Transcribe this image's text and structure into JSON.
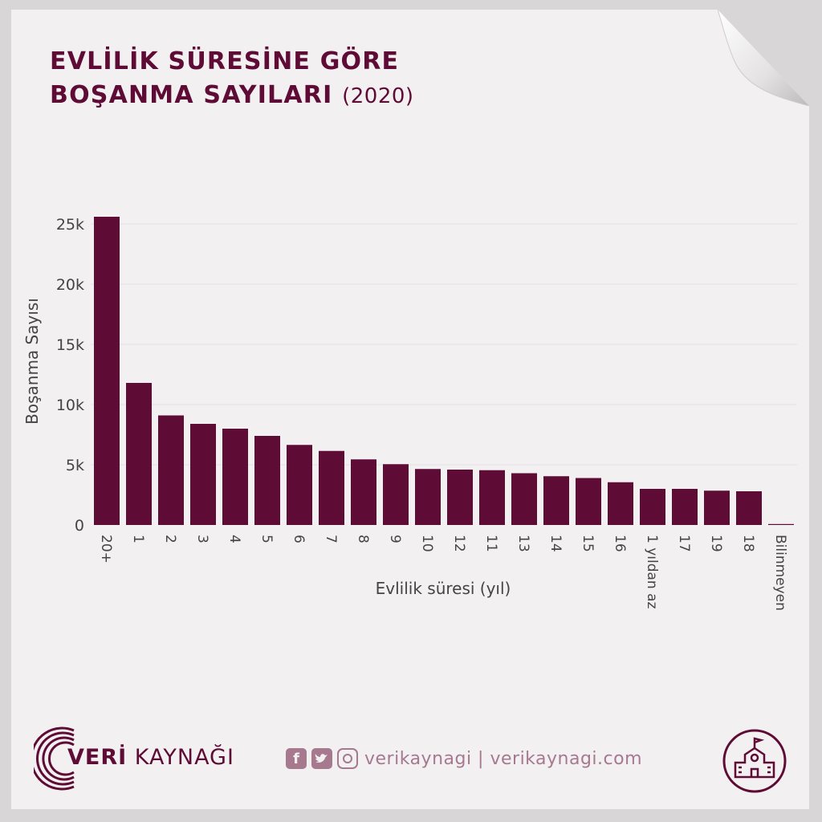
{
  "header": {
    "title_line1": "EVLİLİK SÜRESİNE GÖRE",
    "title_line2": "BOŞANMA SAYILARI",
    "year": "(2020)"
  },
  "chart_data": {
    "type": "bar",
    "title": "",
    "xlabel": "Evlilik süresi (yıl)",
    "ylabel": "Boşanma Sayısı",
    "ylim": [
      0,
      25000
    ],
    "ytick_values": [
      0,
      5000,
      10000,
      15000,
      20000,
      25000
    ],
    "ytick_labels": [
      "0",
      "5k",
      "10k",
      "15k",
      "20k",
      "25k"
    ],
    "grid": true,
    "categories": [
      "20+",
      "1",
      "2",
      "3",
      "4",
      "5",
      "6",
      "7",
      "8",
      "9",
      "10",
      "12",
      "11",
      "13",
      "14",
      "15",
      "16",
      "1 yıldan az",
      "17",
      "19",
      "18",
      "Bilinmeyen"
    ],
    "values": [
      25600,
      11800,
      9100,
      8400,
      8000,
      7400,
      6650,
      6150,
      5450,
      5050,
      4650,
      4600,
      4550,
      4300,
      4050,
      3900,
      3550,
      3000,
      3000,
      2850,
      2800,
      80
    ],
    "colors": {
      "bar": "#5e0b35",
      "grid": "#e3e0e2",
      "text": "#444444"
    }
  },
  "footer": {
    "brand_bold": "VERİ",
    "brand_rest": " KAYNAĞI",
    "social_text": "verikaynagi | verikaynagi.com",
    "icons": [
      "facebook-icon",
      "twitter-icon",
      "instagram-icon",
      "school-building-icon"
    ]
  }
}
